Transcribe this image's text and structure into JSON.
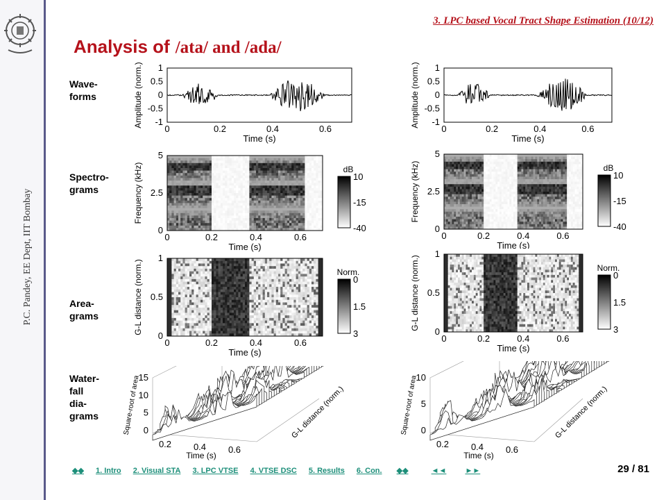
{
  "sidebar": {
    "author": "P.C. Pandey, EE Dept, IIT Bombay"
  },
  "header": {
    "section": "3. LPC based Vocal Tract Shape Estimation (10/12)",
    "title_prefix": "Analysis of",
    "title_phonemes": "/ata/ and /ada/"
  },
  "rows": {
    "waveforms": [
      "Wave-",
      "forms"
    ],
    "spectrograms": [
      "Spectro-",
      "grams"
    ],
    "areagrams": [
      "Area-",
      "grams"
    ],
    "waterfall": [
      "Water-",
      "fall",
      "dia-",
      "grams"
    ]
  },
  "plots": {
    "wave": {
      "ylabel": "Amplitude (norm.)",
      "xlabel": "Time (s)",
      "yticks": [
        "1",
        "0.5",
        "0",
        "-0.5",
        "-1"
      ],
      "xticks": [
        "0",
        "0.2",
        "0.4",
        "0.6"
      ]
    },
    "spec": {
      "ylabel": "Frequency (kHz)",
      "xlabel": "Time (s)",
      "yticks": [
        "5",
        "2.5",
        "0"
      ],
      "xticks": [
        "0",
        "0.2",
        "0.4",
        "0.6"
      ],
      "cb_title": "dB",
      "cb_ticks": [
        "10",
        "-15",
        "-40"
      ]
    },
    "area": {
      "ylabel": "G-L distance (norm.)",
      "xlabel": "Time (s)",
      "yticks": [
        "1",
        "0.5",
        "0"
      ],
      "xticks": [
        "0",
        "0.2",
        "0.4",
        "0.6"
      ],
      "cb_title": "Norm.",
      "cb_ticks": [
        "0",
        "1.5",
        "3"
      ]
    },
    "fall_left": {
      "zlabel": "Square-root of area",
      "xlabel": "Time (s)",
      "ylabel": "G-L distance (norm.)",
      "zticks": [
        "15",
        "10",
        "5",
        "0"
      ],
      "xticks": [
        "0.2",
        "0.4",
        "0.6"
      ]
    },
    "fall_right": {
      "zlabel": "Square-root of area",
      "xlabel": "Time (s)",
      "ylabel": "G-L distance (norm.)",
      "zticks": [
        "10",
        "5",
        "0"
      ],
      "xticks": [
        "0.2",
        "0.4",
        "0.6"
      ]
    }
  },
  "nav": {
    "home": "◆◆",
    "items": [
      "1. Intro",
      "2. Visual STA",
      "3. LPC VTSE",
      "4. VTSE DSC",
      "5. Results",
      "6. Con."
    ],
    "end": "◆◆",
    "prev": "◄◄",
    "next": "►►"
  },
  "page": "29 / 81",
  "colors": {
    "accent": "#b5121b",
    "nav": "#1d8f7a",
    "band": "#5a5a8a"
  }
}
